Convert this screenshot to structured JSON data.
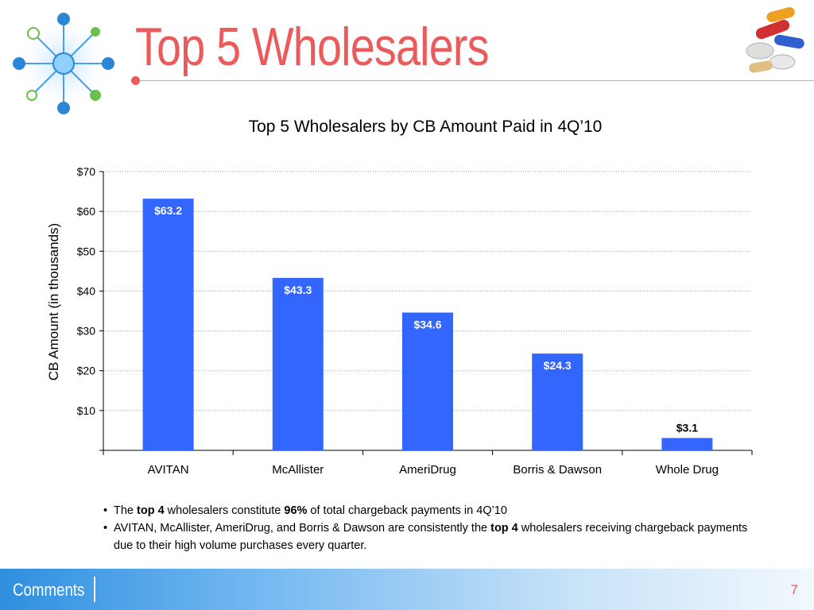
{
  "slide": {
    "title": "Top 5 Wholesalers",
    "page_number": "7",
    "footer_label": "Comments"
  },
  "bullets": [
    [
      {
        "text": "The ",
        "bold": false
      },
      {
        "text": "top 4",
        "bold": true
      },
      {
        "text": " wholesalers constitute ",
        "bold": false
      },
      {
        "text": "96%",
        "bold": true
      },
      {
        "text": " of total chargeback payments in 4Q’10",
        "bold": false
      }
    ],
    [
      {
        "text": "AVITAN, McAllister, AmeriDrug, and Borris & Dawson are consistently the ",
        "bold": false
      },
      {
        "text": "top 4",
        "bold": true
      },
      {
        "text": " wholesalers receiving chargeback payments due to their high volume purchases every quarter.",
        "bold": false
      }
    ]
  ],
  "colors": {
    "bar": "#3366ff",
    "title": "#ea5b5b",
    "bar_label": "#ffffff"
  },
  "chart_data": {
    "type": "bar",
    "title": "Top 5 Wholesalers by CB Amount Paid in 4Q’10",
    "xlabel": "",
    "ylabel": "CB Amount (in thousands)",
    "categories": [
      "AVITAN",
      "McAllister",
      "AmeriDrug",
      "Borris & Dawson",
      "Whole Drug"
    ],
    "values": [
      63.2,
      43.3,
      34.6,
      24.3,
      3.1
    ],
    "value_labels": [
      "$63.2",
      "$43.3",
      "$34.6",
      "$24.3",
      "$3.1"
    ],
    "ylim": [
      0,
      70
    ],
    "yticks": [
      10,
      20,
      30,
      40,
      50,
      60,
      70
    ],
    "ytick_labels": [
      "$10",
      "$20",
      "$30",
      "$40",
      "$50",
      "$60",
      "$70"
    ],
    "grid": true,
    "legend": "none"
  }
}
